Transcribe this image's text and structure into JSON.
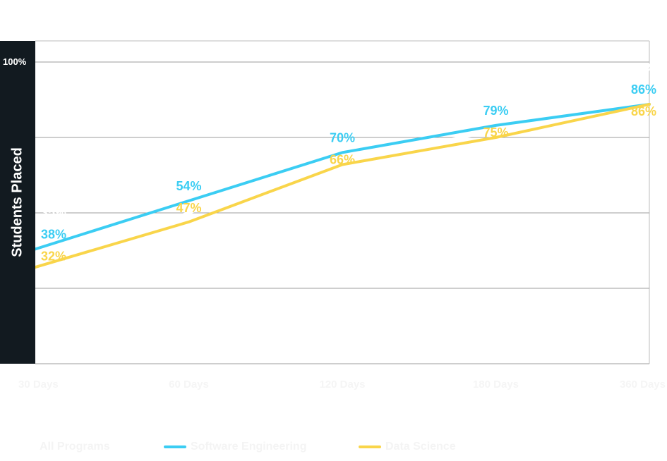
{
  "chart_data": {
    "type": "line",
    "title": "",
    "ylabel": "Students Placed",
    "xlabel": "",
    "x_tick_labels": [
      "30 Days",
      "60 Days",
      "120 Days",
      "180 Days",
      "360 Days"
    ],
    "y_tick_labels": [
      "100%"
    ],
    "ylim": [
      0,
      100
    ],
    "grid": true,
    "legend": "bottom",
    "legend_entries": [
      "All Programs",
      "Software Engineering",
      "Data Science"
    ],
    "series": [
      {
        "name": "All Programs",
        "values": [
          35,
          50,
          68,
          77,
          86
        ],
        "color": "#ffffff",
        "data_labels": [
          "35%",
          "50%",
          "68%",
          "77%",
          "86%"
        ]
      },
      {
        "name": "Software Engineering",
        "values": [
          38,
          54,
          70,
          79,
          86
        ],
        "color": "#3bcdf3",
        "data_labels": [
          "38%",
          "54%",
          "70%",
          "79%",
          "86%"
        ]
      },
      {
        "name": "Data Science",
        "values": [
          32,
          47,
          66,
          75,
          86
        ],
        "color": "#f9d54a",
        "data_labels": [
          "32%",
          "47%",
          "66%",
          "75%",
          "86%"
        ]
      }
    ]
  }
}
